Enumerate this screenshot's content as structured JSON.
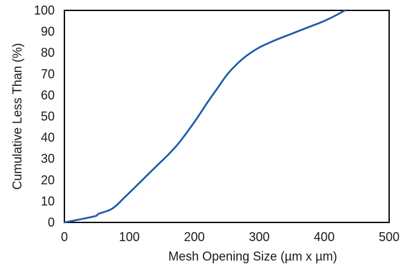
{
  "chart_data": {
    "type": "line",
    "title": "",
    "xlabel": "Mesh Opening Size (µm x µm)",
    "ylabel": "Cumulative Less Than (%)",
    "xlim": [
      0,
      500
    ],
    "ylim": [
      0,
      100
    ],
    "xticks": [
      0,
      100,
      200,
      300,
      400,
      500
    ],
    "yticks": [
      0,
      10,
      20,
      30,
      40,
      50,
      60,
      70,
      80,
      90,
      100
    ],
    "grid": false,
    "legend": "none",
    "line_color": "#1b5aa8",
    "series": [
      {
        "x": [
          0,
          25,
          48,
          52,
          62,
          72,
          80,
          90,
          100,
          115,
          130,
          145,
          160,
          175,
          190,
          205,
          220,
          235,
          250,
          265,
          280,
          300,
          325,
          350,
          375,
          400,
          420,
          432
        ],
        "y": [
          0,
          1.5,
          3,
          4,
          5,
          6.2,
          8,
          11,
          14,
          18.5,
          23,
          27.5,
          32,
          37,
          43,
          49.5,
          56.5,
          63,
          69.5,
          74.5,
          78.5,
          82.5,
          86,
          89,
          92,
          95,
          98,
          100
        ]
      }
    ]
  }
}
